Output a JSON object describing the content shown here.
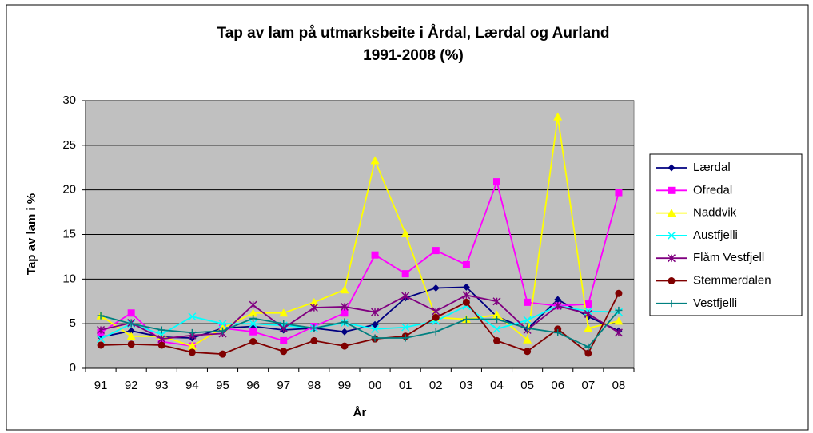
{
  "chart_data": {
    "type": "line",
    "title": "Tap av lam på utmarksbeite i Årdal, Lærdal og Aurland",
    "subtitle": "1991-2008 (%)",
    "x_label": "År",
    "y_label": "Tap av lam i %",
    "categories": [
      "91",
      "92",
      "93",
      "94",
      "95",
      "96",
      "97",
      "98",
      "99",
      "00",
      "01",
      "02",
      "03",
      "04",
      "05",
      "06",
      "07",
      "08"
    ],
    "ylim": [
      0,
      30
    ],
    "yticks": [
      0,
      5,
      10,
      15,
      20,
      25,
      30
    ],
    "grid": true,
    "legend": "right",
    "series": [
      {
        "name": "Lærdal",
        "color": "#000080",
        "marker": "diamond",
        "values": [
          3.5,
          4.2,
          3.5,
          3.4,
          4.5,
          4.7,
          4.3,
          4.5,
          4.1,
          4.9,
          7.9,
          9.0,
          9.1,
          5.8,
          4.4,
          7.7,
          5.8,
          4.2
        ]
      },
      {
        "name": "Ofredal",
        "color": "#ff00ff",
        "marker": "square",
        "values": [
          4.0,
          6.2,
          3.0,
          2.5,
          4.5,
          4.1,
          3.1,
          4.7,
          6.2,
          12.7,
          10.6,
          13.2,
          11.6,
          20.9,
          7.4,
          7.0,
          7.2,
          19.7
        ]
      },
      {
        "name": "Naddvik",
        "color": "#ffff00",
        "marker": "triangle",
        "values": [
          5.9,
          3.6,
          3.6,
          2.5,
          4.5,
          6.2,
          6.2,
          7.4,
          8.8,
          23.3,
          15.1,
          5.7,
          5.5,
          6.0,
          3.2,
          28.2,
          4.5,
          5.3
        ]
      },
      {
        "name": "Austfjelli",
        "color": "#00ffff",
        "marker": "x",
        "values": [
          3.3,
          5.0,
          3.8,
          5.8,
          5.0,
          5.0,
          4.8,
          4.5,
          5.1,
          4.4,
          4.6,
          5.3,
          7.0,
          4.4,
          5.4,
          7.0,
          6.4,
          6.3
        ]
      },
      {
        "name": "Flåm Vestfjell",
        "color": "#800080",
        "marker": "star",
        "values": [
          4.3,
          5.1,
          3.3,
          3.7,
          3.9,
          7.1,
          4.5,
          6.8,
          6.9,
          6.3,
          8.1,
          6.4,
          8.2,
          7.5,
          4.3,
          7.0,
          6.1,
          4.0
        ]
      },
      {
        "name": "Stemmerdalen",
        "color": "#800000",
        "marker": "circle",
        "values": [
          2.6,
          2.7,
          2.6,
          1.8,
          1.6,
          3.0,
          1.9,
          3.1,
          2.5,
          3.3,
          3.6,
          5.7,
          7.4,
          3.1,
          1.9,
          4.4,
          1.7,
          8.4
        ]
      },
      {
        "name": "Vestfjelli",
        "color": "#008080",
        "marker": "plus",
        "values": [
          5.9,
          5.0,
          4.3,
          4.0,
          4.2,
          5.6,
          5.0,
          4.5,
          5.2,
          3.4,
          3.4,
          4.1,
          5.5,
          5.5,
          4.5,
          4.0,
          2.4,
          6.5
        ]
      }
    ]
  }
}
